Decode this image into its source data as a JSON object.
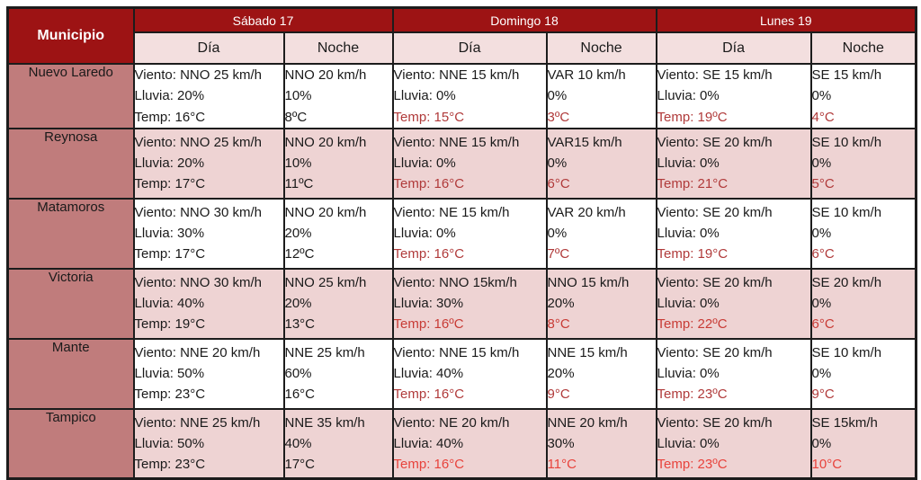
{
  "colors": {
    "header_bg": "#9d1314",
    "header_text": "#ffffff",
    "subheader_bg": "#f3dfdf",
    "municipio_bg": "#c07c7c",
    "row_bg": "#ffffff",
    "row_alt_bg": "#eed3d3",
    "border": "#1c1c1c",
    "temp_red": "#b03a3a",
    "temp_red_bright": "#e8433c"
  },
  "chart_data": {
    "type": "table",
    "header": {
      "municipio": "Municipio",
      "days": [
        {
          "label": "Sábado 17"
        },
        {
          "label": "Domingo 18"
        },
        {
          "label": "Lunes 19"
        }
      ],
      "subcolumns": [
        "Día",
        "Noche"
      ]
    },
    "rows": [
      {
        "municipio": "Nuevo Laredo",
        "cells": [
          {
            "lines": [
              "Viento: NNO 25 km/h",
              "Lluvia: 20%",
              "Temp: 16°C"
            ],
            "temp_color": null
          },
          {
            "lines": [
              "NNO 20 km/h",
              "10%",
              "8ºC"
            ],
            "temp_color": null
          },
          {
            "lines": [
              "Viento: NNE 15 km/h",
              "Lluvia: 0%",
              "Temp: 15°C"
            ],
            "temp_color": "#b03a3a"
          },
          {
            "lines": [
              "VAR 10 km/h",
              "0%",
              "3ºC"
            ],
            "temp_color": "#b03a3a"
          },
          {
            "lines": [
              "Viento: SE 15 km/h",
              "Lluvia: 0%",
              "Temp: 19ºC"
            ],
            "temp_color": "#b03a3a"
          },
          {
            "lines": [
              "SE 15 km/h",
              "0%",
              "4°C"
            ],
            "temp_color": "#b03a3a"
          }
        ]
      },
      {
        "municipio": "Reynosa",
        "cells": [
          {
            "lines": [
              "Viento: NNO 25 km/h",
              "Lluvia: 20%",
              "Temp: 17°C"
            ],
            "temp_color": null
          },
          {
            "lines": [
              "NNO 20 km/h",
              "10%",
              "11ºC"
            ],
            "temp_color": null
          },
          {
            "lines": [
              "Viento: NNE 15 km/h",
              "Lluvia: 0%",
              "Temp: 16°C"
            ],
            "temp_color": "#b03a3a"
          },
          {
            "lines": [
              "VAR15 km/h",
              "0%",
              "6°C"
            ],
            "temp_color": "#b03a3a"
          },
          {
            "lines": [
              "Viento: SE 20 km/h",
              "Lluvia: 0%",
              "Temp: 21°C"
            ],
            "temp_color": "#b03a3a"
          },
          {
            "lines": [
              "SE 10 km/h",
              "0%",
              "5°C"
            ],
            "temp_color": "#b03a3a"
          }
        ]
      },
      {
        "municipio": "Matamoros",
        "cells": [
          {
            "lines": [
              "Viento: NNO 30 km/h",
              "Lluvia: 30%",
              "Temp: 17°C"
            ],
            "temp_color": null
          },
          {
            "lines": [
              "NNO 20 km/h",
              "20%",
              "12ºC"
            ],
            "temp_color": null
          },
          {
            "lines": [
              "Viento: NE 15 km/h",
              "Lluvia: 0%",
              "Temp: 16°C"
            ],
            "temp_color": "#b03a3a"
          },
          {
            "lines": [
              "VAR 20 km/h",
              "0%",
              "7ºC"
            ],
            "temp_color": "#b03a3a"
          },
          {
            "lines": [
              "Viento: SE 20 km/h",
              "Lluvia: 0%",
              "Temp: 19°C"
            ],
            "temp_color": "#b03a3a"
          },
          {
            "lines": [
              "SE 10 km/h",
              "0%",
              "6°C"
            ],
            "temp_color": "#b03a3a"
          }
        ]
      },
      {
        "municipio": "Victoria",
        "cells": [
          {
            "lines": [
              "Viento: NNO 30 km/h",
              "Lluvia: 40%",
              "Temp: 19°C"
            ],
            "temp_color": null
          },
          {
            "lines": [
              "NNO 25 km/h",
              "20%",
              "13°C"
            ],
            "temp_color": null
          },
          {
            "lines": [
              "Viento: NNO 15km/h",
              "Lluvia: 30%",
              "Temp: 16ºC"
            ],
            "temp_color": "#c83b35"
          },
          {
            "lines": [
              "NNO 15 km/h",
              "20%",
              "8°C"
            ],
            "temp_color": "#c83b35"
          },
          {
            "lines": [
              "Viento: SE 20 km/h",
              "Lluvia: 0%",
              "Temp: 22ºC"
            ],
            "temp_color": "#c83b35"
          },
          {
            "lines": [
              "SE 20 km/h",
              "0%",
              "6°C"
            ],
            "temp_color": "#c83b35"
          }
        ]
      },
      {
        "municipio": "Mante",
        "cells": [
          {
            "lines": [
              "Viento: NNE 20 km/h",
              "Lluvia: 50%",
              "Temp: 23°C"
            ],
            "temp_color": null
          },
          {
            "lines": [
              "NNE 25 km/h",
              "60%",
              "16°C"
            ],
            "temp_color": null
          },
          {
            "lines": [
              "Viento: NNE 15 km/h",
              "Lluvia: 40%",
              "Temp: 16°C"
            ],
            "temp_color": "#b03a3a"
          },
          {
            "lines": [
              "NNE 15 km/h",
              "20%",
              "9°C"
            ],
            "temp_color": "#b03a3a"
          },
          {
            "lines": [
              "Viento: SE 20 km/h",
              "Lluvia: 0%",
              "Temp: 23ºC"
            ],
            "temp_color": "#b03a3a"
          },
          {
            "lines": [
              "SE 10 km/h",
              "0%",
              "9°C"
            ],
            "temp_color": "#b03a3a"
          }
        ]
      },
      {
        "municipio": "Tampico",
        "cells": [
          {
            "lines": [
              "Viento: NNE 25 km/h",
              "Lluvia: 50%",
              "Temp: 23°C"
            ],
            "temp_color": null
          },
          {
            "lines": [
              "NNE 35 km/h",
              "40%",
              "17°C"
            ],
            "temp_color": null
          },
          {
            "lines": [
              "Viento: NE 20 km/h",
              "Lluvia: 40%",
              "Temp: 16°C"
            ],
            "temp_color": "#e8433c"
          },
          {
            "lines": [
              "NNE 20 km/h",
              "30%",
              "11°C"
            ],
            "temp_color": "#e8433c"
          },
          {
            "lines": [
              "Viento: SE 20 km/h",
              "Lluvia: 0%",
              "Temp: 23ºC"
            ],
            "temp_color": "#e8433c"
          },
          {
            "lines": [
              "SE 15km/h",
              "0%",
              "10°C"
            ],
            "temp_color": "#e8433c"
          }
        ]
      }
    ]
  }
}
